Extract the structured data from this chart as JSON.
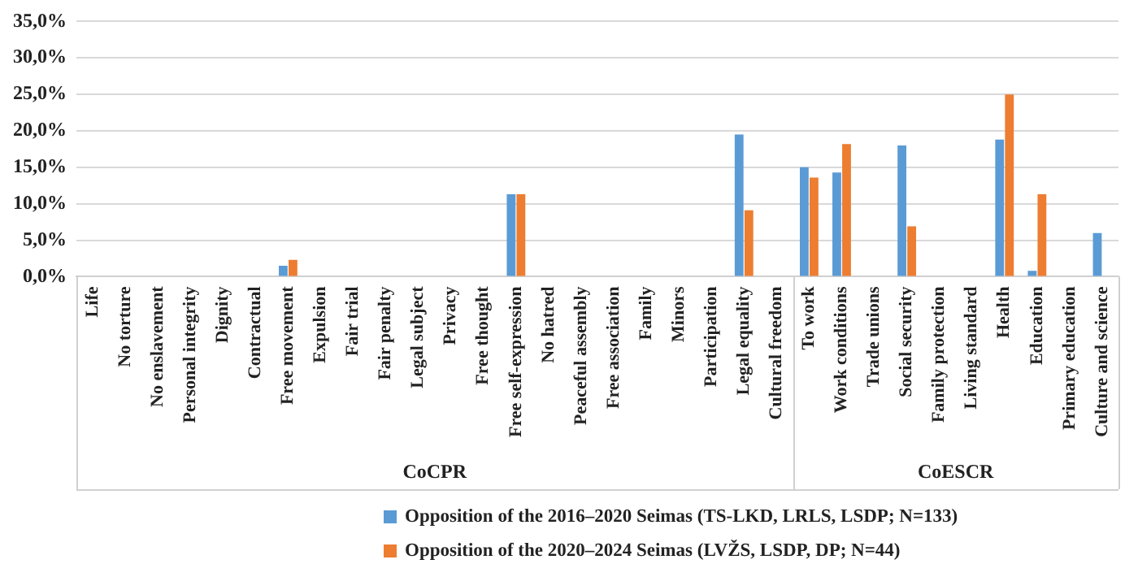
{
  "chart_data": {
    "type": "bar",
    "categories": [
      "Life",
      "No torture",
      "No enslavement",
      "Personal integrity",
      "Dignity",
      "Contractual",
      "Free movement",
      "Expulsion",
      "Fair trial",
      "Fair penalty",
      "Legal subject",
      "Privacy",
      "Free thought",
      "Free self-expression",
      "No hatred",
      "Peaceful assembly",
      "Free association",
      "Family",
      "Minors",
      "Participation",
      "Legal equality",
      "Cultural freedom",
      "To work",
      "Work conditions",
      "Trade unions",
      "Social security",
      "Family protection",
      "Living standard",
      "Health",
      "Education",
      "Primary education",
      "Culture and science"
    ],
    "series": [
      {
        "name": "Opposition of the 2016–2020 Seimas (TS-LKD, LRLS, LSDP; N=133)",
        "color": "#5b9bd5",
        "values": [
          0,
          0,
          0,
          0,
          0,
          0,
          1.5,
          0,
          0,
          0,
          0,
          0,
          0,
          11.3,
          0,
          0,
          0,
          0,
          0,
          0,
          19.5,
          0,
          15.0,
          14.3,
          0,
          18.0,
          0,
          0,
          18.8,
          0.8,
          0,
          6.0
        ]
      },
      {
        "name": "Opposition of the 2020–2024 Seimas (LVŽS, LSDP, DP; N=44)",
        "color": "#ed7d31",
        "values": [
          0,
          0,
          0,
          0,
          0,
          0,
          2.3,
          0,
          0,
          0,
          0,
          0,
          0,
          11.3,
          0,
          0,
          0,
          0,
          0,
          0,
          9.1,
          0,
          13.6,
          18.2,
          0,
          6.9,
          0,
          0,
          25.0,
          11.3,
          0,
          0
        ]
      }
    ],
    "ylim": [
      0,
      35
    ],
    "yticks": [
      {
        "value": 0,
        "label": "0,0%"
      },
      {
        "value": 5,
        "label": "5,0%"
      },
      {
        "value": 10,
        "label": "10,0%"
      },
      {
        "value": 15,
        "label": "15,0%"
      },
      {
        "value": 20,
        "label": "20,0%"
      },
      {
        "value": 25,
        "label": "25,0%"
      },
      {
        "value": 30,
        "label": "30,0%"
      },
      {
        "value": 35,
        "label": "35,0%"
      }
    ],
    "grid": "y",
    "legend": "bottom",
    "annotations": [
      "CoCPR",
      "CoESCR"
    ]
  }
}
